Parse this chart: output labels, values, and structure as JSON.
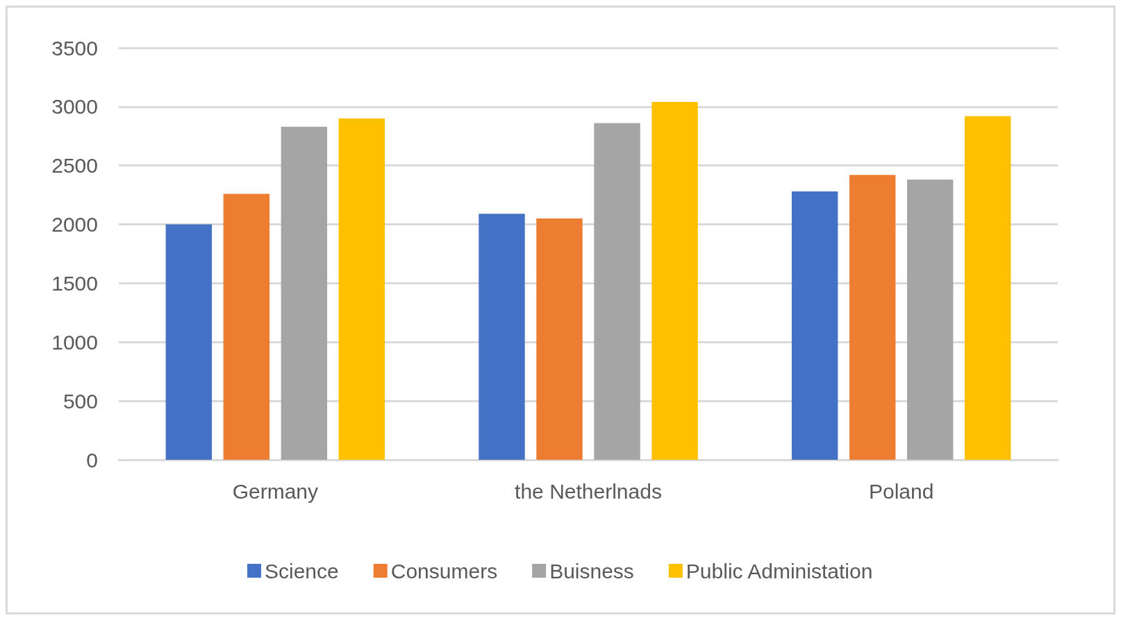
{
  "chart_data": {
    "type": "bar",
    "categories": [
      "Germany",
      "the Netherlnads",
      "Poland"
    ],
    "series": [
      {
        "name": "Science",
        "color": "#4472c4",
        "values": [
          2000,
          2090,
          2280
        ]
      },
      {
        "name": "Consumers",
        "color": "#ed7d31",
        "values": [
          2260,
          2050,
          2420
        ]
      },
      {
        "name": "Buisness",
        "color": "#a5a5a5",
        "values": [
          2830,
          2860,
          2380
        ]
      },
      {
        "name": "Public Administation",
        "color": "#ffc000",
        "values": [
          2900,
          3040,
          2920
        ]
      }
    ],
    "ylim": [
      0,
      3500
    ],
    "yticks": [
      0,
      500,
      1000,
      1500,
      2000,
      2500,
      3000,
      3500
    ],
    "grid": "y",
    "legend": "bottom"
  }
}
